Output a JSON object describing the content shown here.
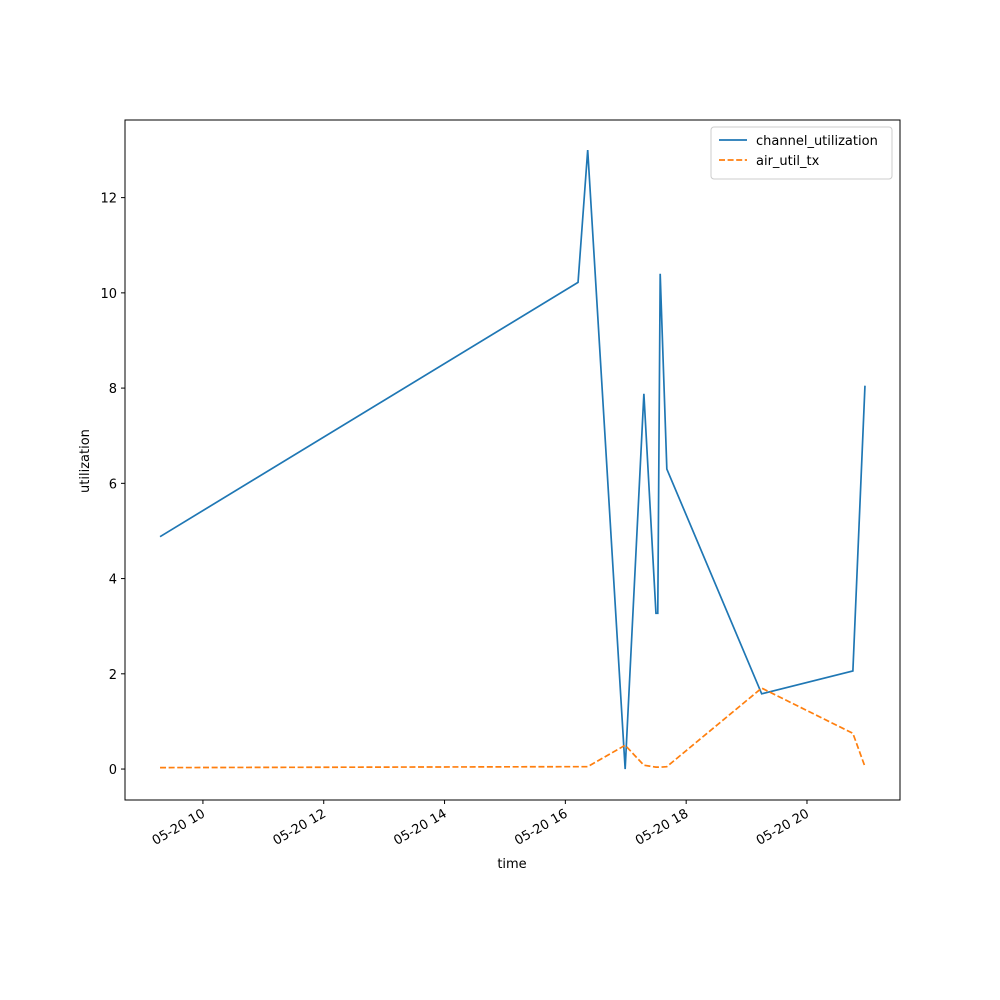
{
  "chart_data": {
    "type": "line",
    "xlabel": "time",
    "ylabel": "utilization",
    "x": [
      9.29,
      16.21,
      16.37,
      16.99,
      17.3,
      17.5,
      17.53,
      17.57,
      17.68,
      19.25,
      20.76,
      20.96
    ],
    "series": [
      {
        "name": "channel_utilization",
        "color": "#1f77b4",
        "dash": "solid",
        "values": [
          4.88,
          10.22,
          13.0,
          0.0,
          7.88,
          3.27,
          3.27,
          10.4,
          6.3,
          1.58,
          2.06,
          8.05
        ]
      },
      {
        "name": "air_util_tx",
        "color": "#ff7f0e",
        "dash": "dashed",
        "values": [
          0.03,
          0.05,
          0.05,
          0.5,
          0.08,
          0.04,
          0.04,
          0.04,
          0.05,
          1.7,
          0.75,
          0.05
        ]
      }
    ],
    "xlim": [
      8.71,
      21.54
    ],
    "xticks": [
      {
        "value": 10,
        "label": "05-20 10"
      },
      {
        "value": 12,
        "label": "05-20 12"
      },
      {
        "value": 14,
        "label": "05-20 14"
      },
      {
        "value": 16,
        "label": "05-20 16"
      },
      {
        "value": 18,
        "label": "05-20 18"
      },
      {
        "value": 20,
        "label": "05-20 20"
      }
    ],
    "ylim": [
      -0.65,
      13.63
    ],
    "yticks": [
      0,
      2,
      4,
      6,
      8,
      10,
      12
    ],
    "legend": "upper right",
    "grid": false
  }
}
